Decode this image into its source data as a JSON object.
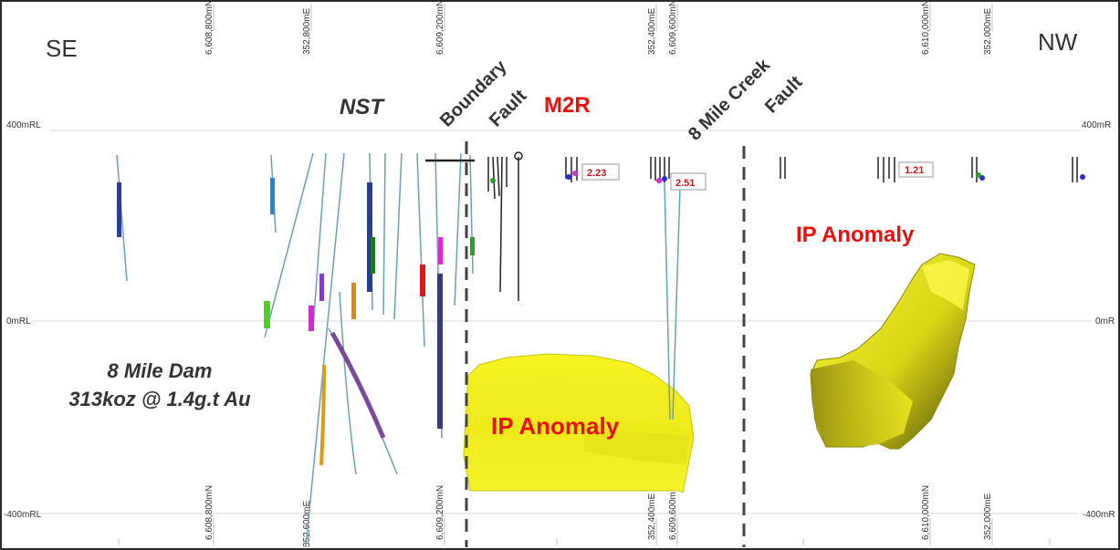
{
  "orientation": {
    "left": "SE",
    "right": "NW"
  },
  "rl_labels": {
    "top": "400mRL",
    "mid": "0mRL",
    "bottom": "-400mRL"
  },
  "rl_labels_right": {
    "top": "400mR",
    "mid": "0mR",
    "bottom": "-400mR"
  },
  "grid_labels": {
    "n_608800": "6,608,800mN",
    "e_352800": "352,800mE",
    "n_609200": "6,609,200mN",
    "e_352400": "352,400mE",
    "n_609600": "6,609,600mN",
    "n_610000": "6,610,000mN",
    "e_352000": "352,000mE",
    "e_352600_partial": "352,600mE"
  },
  "annotations": {
    "nst": "NST",
    "boundary_fault_1": "Boundary",
    "boundary_fault_2": "Fault",
    "m2r": "M2R",
    "creek_fault_1": "8 Mile Creek",
    "creek_fault_2": "Fault",
    "deposit_name": "8 Mile Dam",
    "deposit_resource": "313koz @ 1.4g.t Au",
    "ip_anomaly_left": "IP Anomaly",
    "ip_anomaly_right": "IP Anomaly"
  },
  "grade_labels": {
    "g1": "2.23",
    "g2": "2.51",
    "g3": "1.21"
  },
  "colors": {
    "label_red": "#e8100c",
    "anomaly_yellow": "#f2ee1c",
    "anomaly_shadow": "#6e6a10",
    "fault_line": "#444444",
    "text_dark": "#222222"
  }
}
